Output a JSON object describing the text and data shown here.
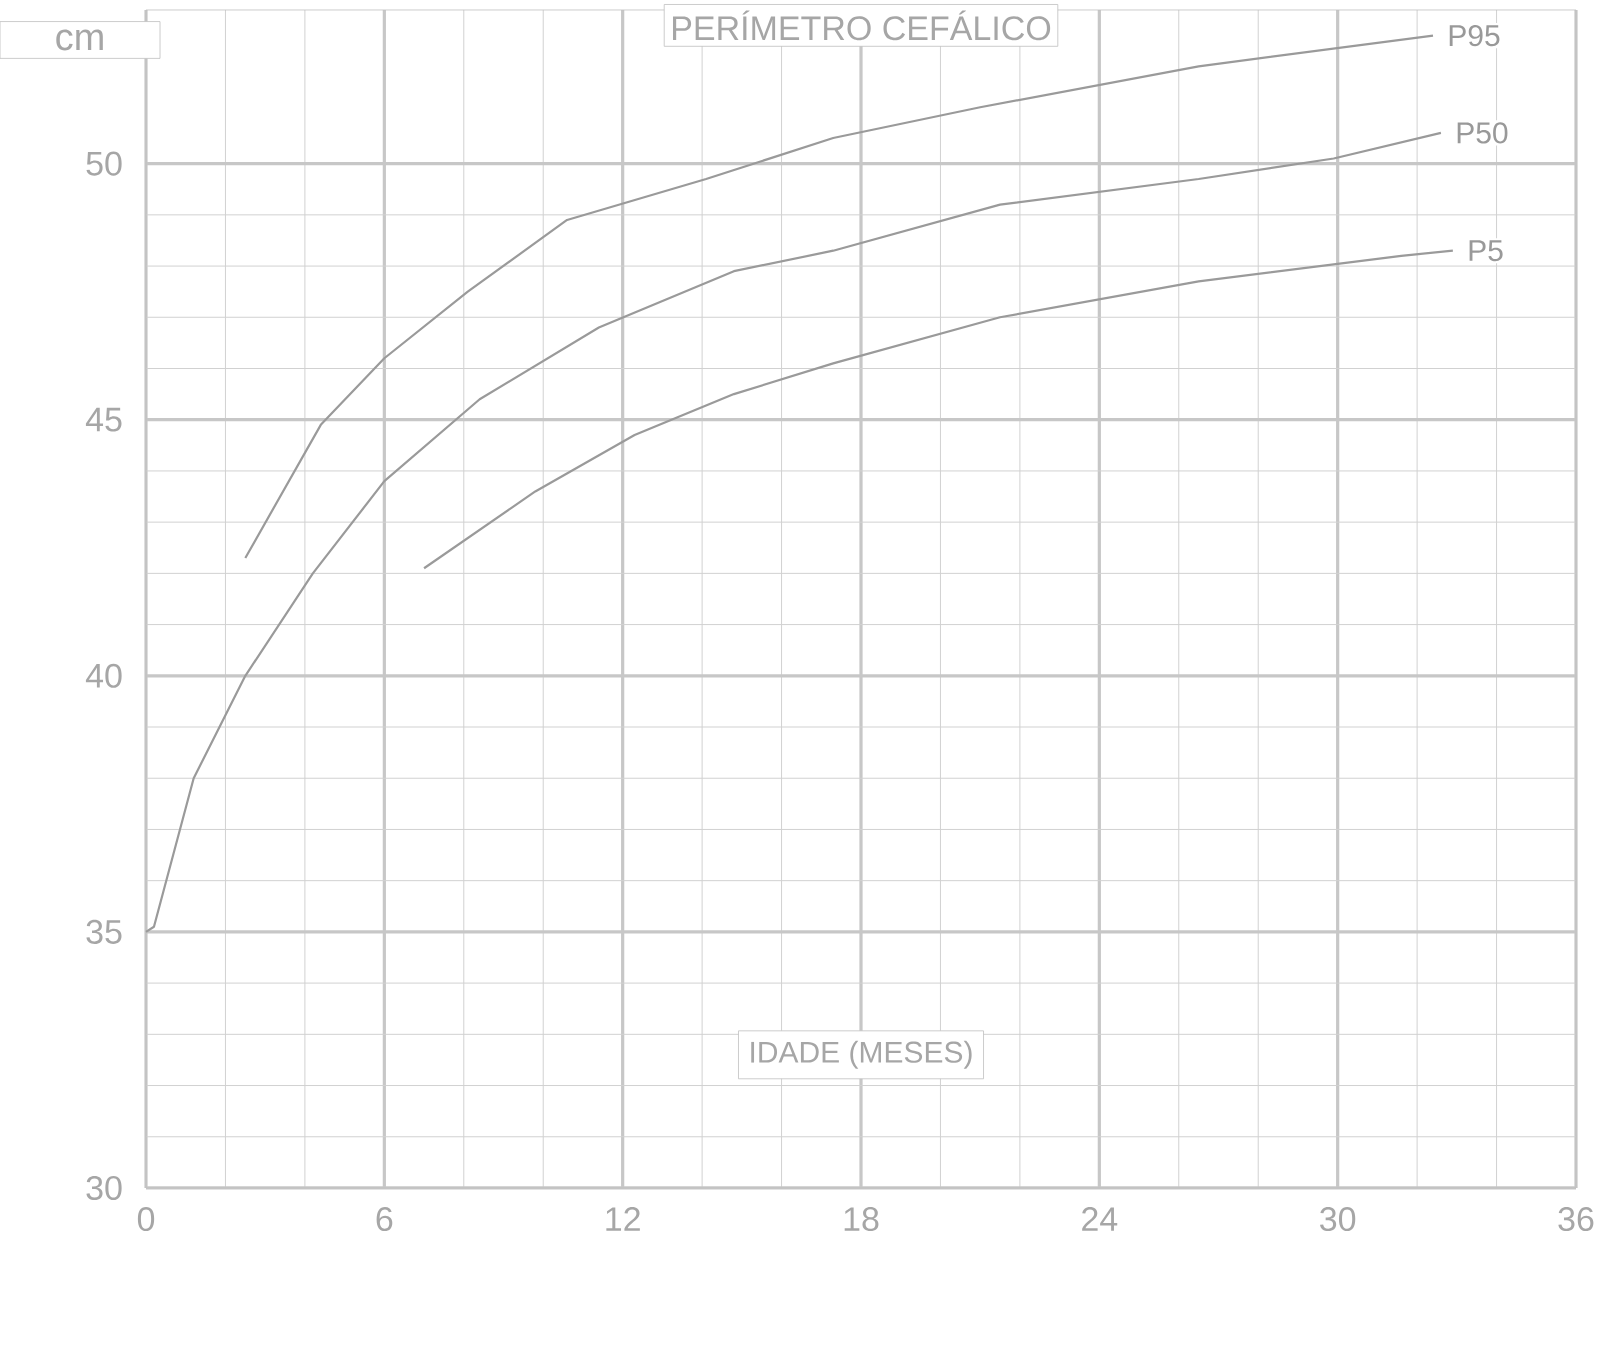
{
  "chart_data": {
    "type": "line",
    "title": "PERÍMETRO CEFÁLICO",
    "xlabel": "IDADE (MESES)",
    "ylabel": "cm",
    "xlim": [
      0,
      36
    ],
    "ylim": [
      30,
      53
    ],
    "xticks": [
      0,
      6,
      12,
      18,
      24,
      30,
      36
    ],
    "yticks": [
      30,
      35,
      40,
      45,
      50
    ],
    "grid": true,
    "legend": false,
    "marker": "none",
    "line_style": "solid",
    "series": [
      {
        "name": "P95",
        "color": "#9a9a9a",
        "x": [
          2.5,
          4.4,
          6.0,
          8.1,
          10.6,
          14.1,
          17.3,
          21.0,
          26.5,
          32.4
        ],
        "values": [
          42.3,
          44.9,
          46.2,
          47.5,
          48.9,
          49.7,
          50.5,
          51.1,
          51.9,
          52.5
        ]
      },
      {
        "name": "P50",
        "color": "#9a9a9a",
        "x": [
          0,
          0.2,
          1.2,
          2.5,
          4.2,
          6.0,
          8.4,
          11.4,
          14.8,
          17.3,
          21.5,
          26.5,
          29.9,
          32.6
        ],
        "values": [
          35.0,
          35.1,
          38.0,
          40.0,
          42.0,
          43.8,
          45.4,
          46.8,
          47.9,
          48.3,
          49.2,
          49.7,
          50.1,
          50.6
        ]
      },
      {
        "name": "P5",
        "color": "#9a9a9a",
        "x": [
          7.0,
          9.8,
          12.3,
          14.8,
          17.3,
          21.5,
          26.5,
          31.6,
          32.9
        ],
        "values": [
          42.1,
          43.6,
          44.7,
          45.5,
          46.1,
          47.0,
          47.7,
          48.2,
          48.3
        ]
      }
    ]
  }
}
